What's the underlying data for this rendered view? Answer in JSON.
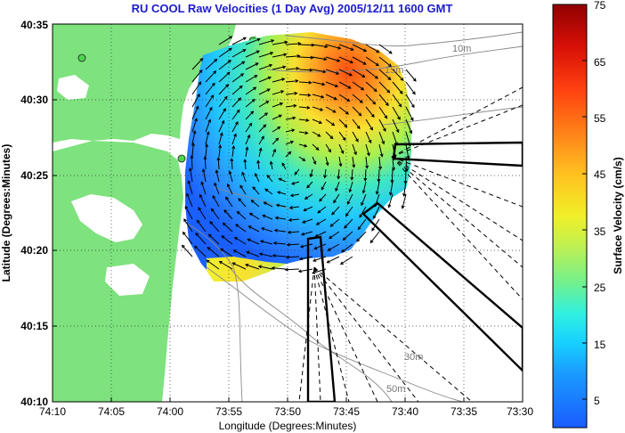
{
  "title": "RU COOL Raw Velocities (1 Day Avg) 2005/12/11 1600 GMT",
  "xlabel": "Longitude (Degrees:Minutes)",
  "ylabel": "Latitude (Degrees:Minutes)",
  "colorbar_label": "Surface Velocity (cm/s)",
  "x_ticks": [
    "74:10",
    "74:05",
    "74:00",
    "73:55",
    "73:50",
    "73:45",
    "73:40",
    "73:35",
    "73:30"
  ],
  "y_ticks": [
    "40:35",
    "40:30",
    "40:25",
    "40:20",
    "40:15",
    "40:10"
  ],
  "colorbar_ticks": [
    "75",
    "65",
    "55",
    "45",
    "35",
    "25",
    "15",
    "5"
  ],
  "colorbar_range": [
    0,
    75
  ],
  "contour_labels": [
    "10m",
    "15m",
    "30m",
    "50m"
  ],
  "colors": {
    "land": "#7ee27e",
    "title": "#1c1ccc",
    "low_speed": "#1a5cff",
    "high_speed": "#a00000"
  }
}
